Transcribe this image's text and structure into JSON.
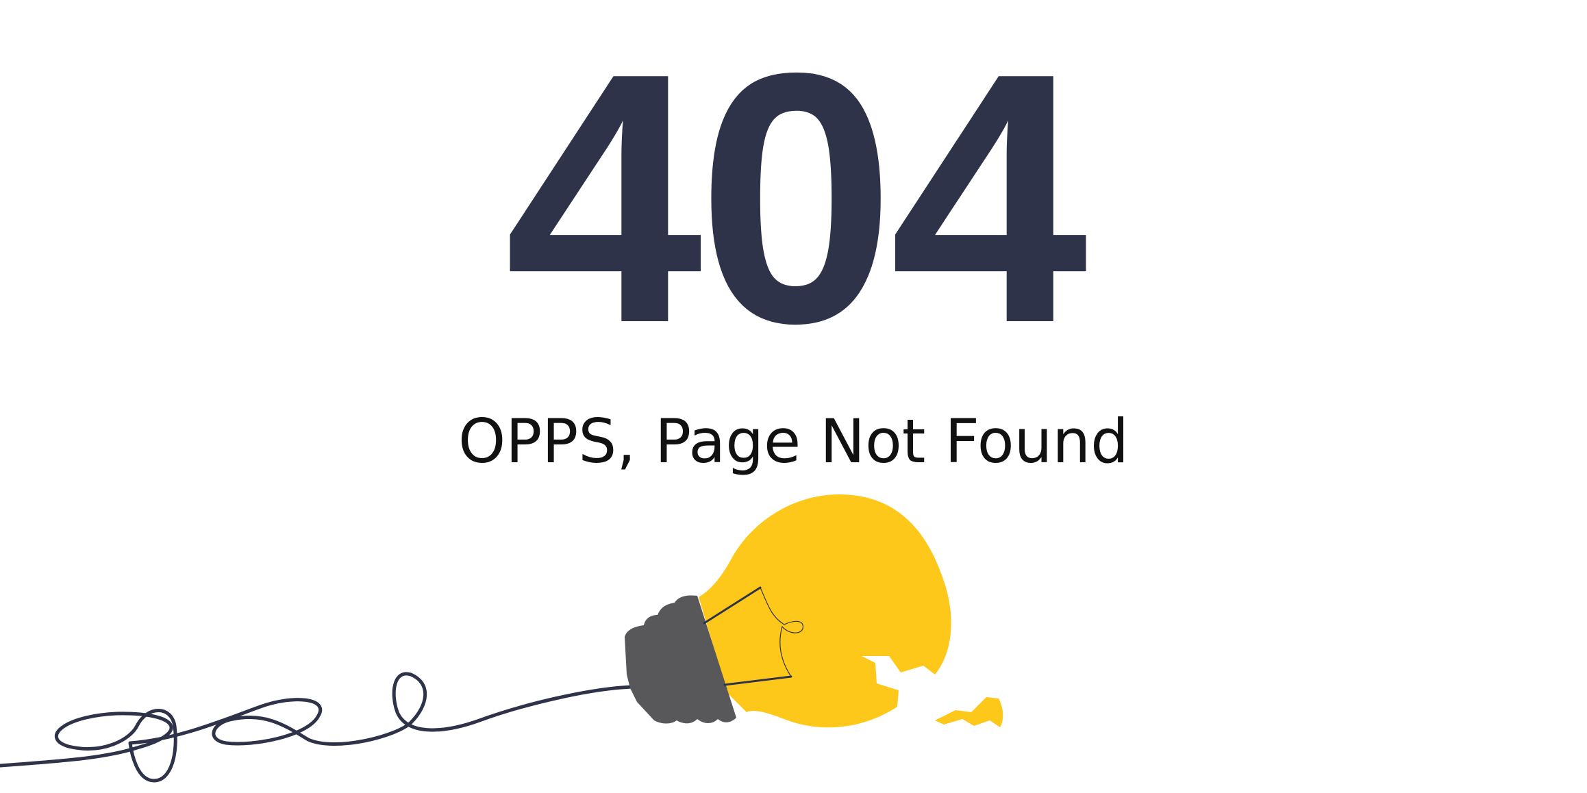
{
  "error": {
    "code": "404",
    "message": "OPPS, Page Not Found"
  },
  "illustration": {
    "icon": "broken-lightbulb-icon",
    "cord_icon": "tangled-cord-icon",
    "colors": {
      "bulb": "#fec81a",
      "socket": "#58585a",
      "cord": "#2f3349",
      "filament": "#2f3349"
    }
  },
  "theme": {
    "text_dark": "#2f3349",
    "background": "#ffffff"
  }
}
